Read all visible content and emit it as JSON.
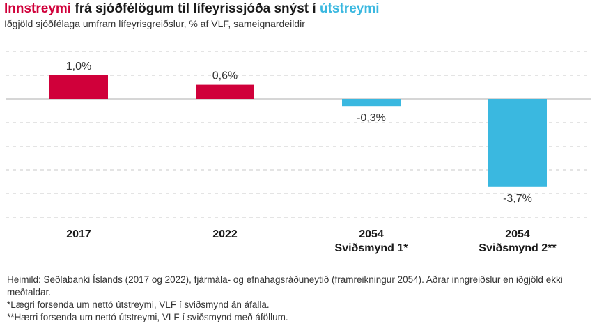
{
  "title": {
    "part1": "Innstreymi",
    "part2": " frá sjóðfélögum til lífeyrissjóða snýst í ",
    "part3": "útstreymi"
  },
  "subtitle": "Iðgjöld sjóðfélaga umfram lífeyrisgreiðslur, % af VLF, sameignardeildir",
  "chart_data": {
    "type": "bar",
    "categories": [
      {
        "line1": "2017",
        "line2": ""
      },
      {
        "line1": "2022",
        "line2": ""
      },
      {
        "line1": "2054",
        "line2": "Sviðsmynd 1*"
      },
      {
        "line1": "2054",
        "line2": "Sviðsmynd 2**"
      }
    ],
    "values": [
      1.0,
      0.6,
      -0.3,
      -3.7
    ],
    "value_labels": [
      "1,0%",
      "0,6%",
      "-0,3%",
      "-3,7%"
    ],
    "colors": [
      "#d0003a",
      "#d0003a",
      "#3ab8e0",
      "#3ab8e0"
    ],
    "ylim": [
      -5,
      2
    ],
    "grid": true,
    "xlabel": "",
    "ylabel": ""
  },
  "notes": [
    "Heimild: Seðlabanki Íslands (2017 og 2022), fjármála- og efnahagsráðuneytið (framreikningur 2054). Aðrar inngreiðslur en iðgjöld ekki meðtaldar.",
    "*Lægri forsenda um nettó útstreymi, VLF í sviðsmynd án áfalla.",
    "**Hærri forsenda um nettó útstreymi, VLF í sviðsmynd með áföllum."
  ]
}
